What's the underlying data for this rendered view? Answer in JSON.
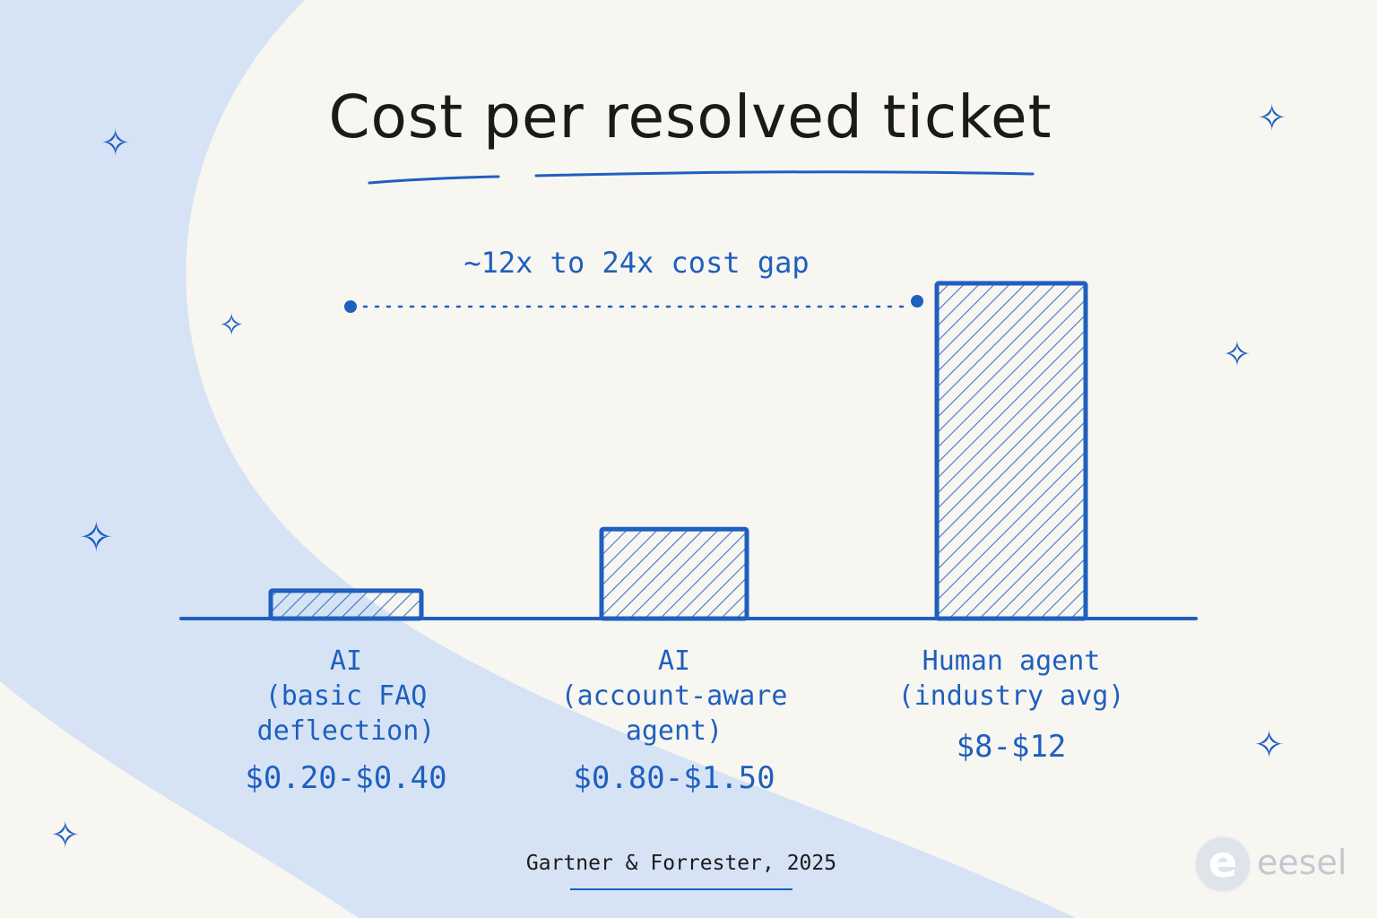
{
  "chart_data": {
    "type": "bar",
    "title": "Cost per resolved ticket",
    "categories": [
      {
        "name": "AI",
        "desc": "(basic FAQ\ndeflection)",
        "label": "$0.20-$0.40"
      },
      {
        "name": "AI",
        "desc": "(account-aware\nagent)",
        "label": "$0.80-$1.50"
      },
      {
        "name": "Human agent",
        "desc": "(industry avg)",
        "label": "$8-$12"
      }
    ],
    "value_ranges": [
      [
        0.2,
        0.4
      ],
      [
        0.8,
        1.5
      ],
      [
        8,
        12
      ]
    ],
    "values": [
      0.5,
      1.6,
      6.0
    ],
    "annotation": "~12x to 24x cost gap",
    "grid": false,
    "legend": "none"
  },
  "source": "Gartner & Forrester, 2025",
  "logo": {
    "mark": "e",
    "text": "eesel"
  },
  "colors": {
    "accent": "#1f5fbf",
    "background": "#f8f6f1",
    "wave": "#d5e3f5",
    "title": "#1a1a1a"
  },
  "icons": [
    "sparkle-icon"
  ]
}
